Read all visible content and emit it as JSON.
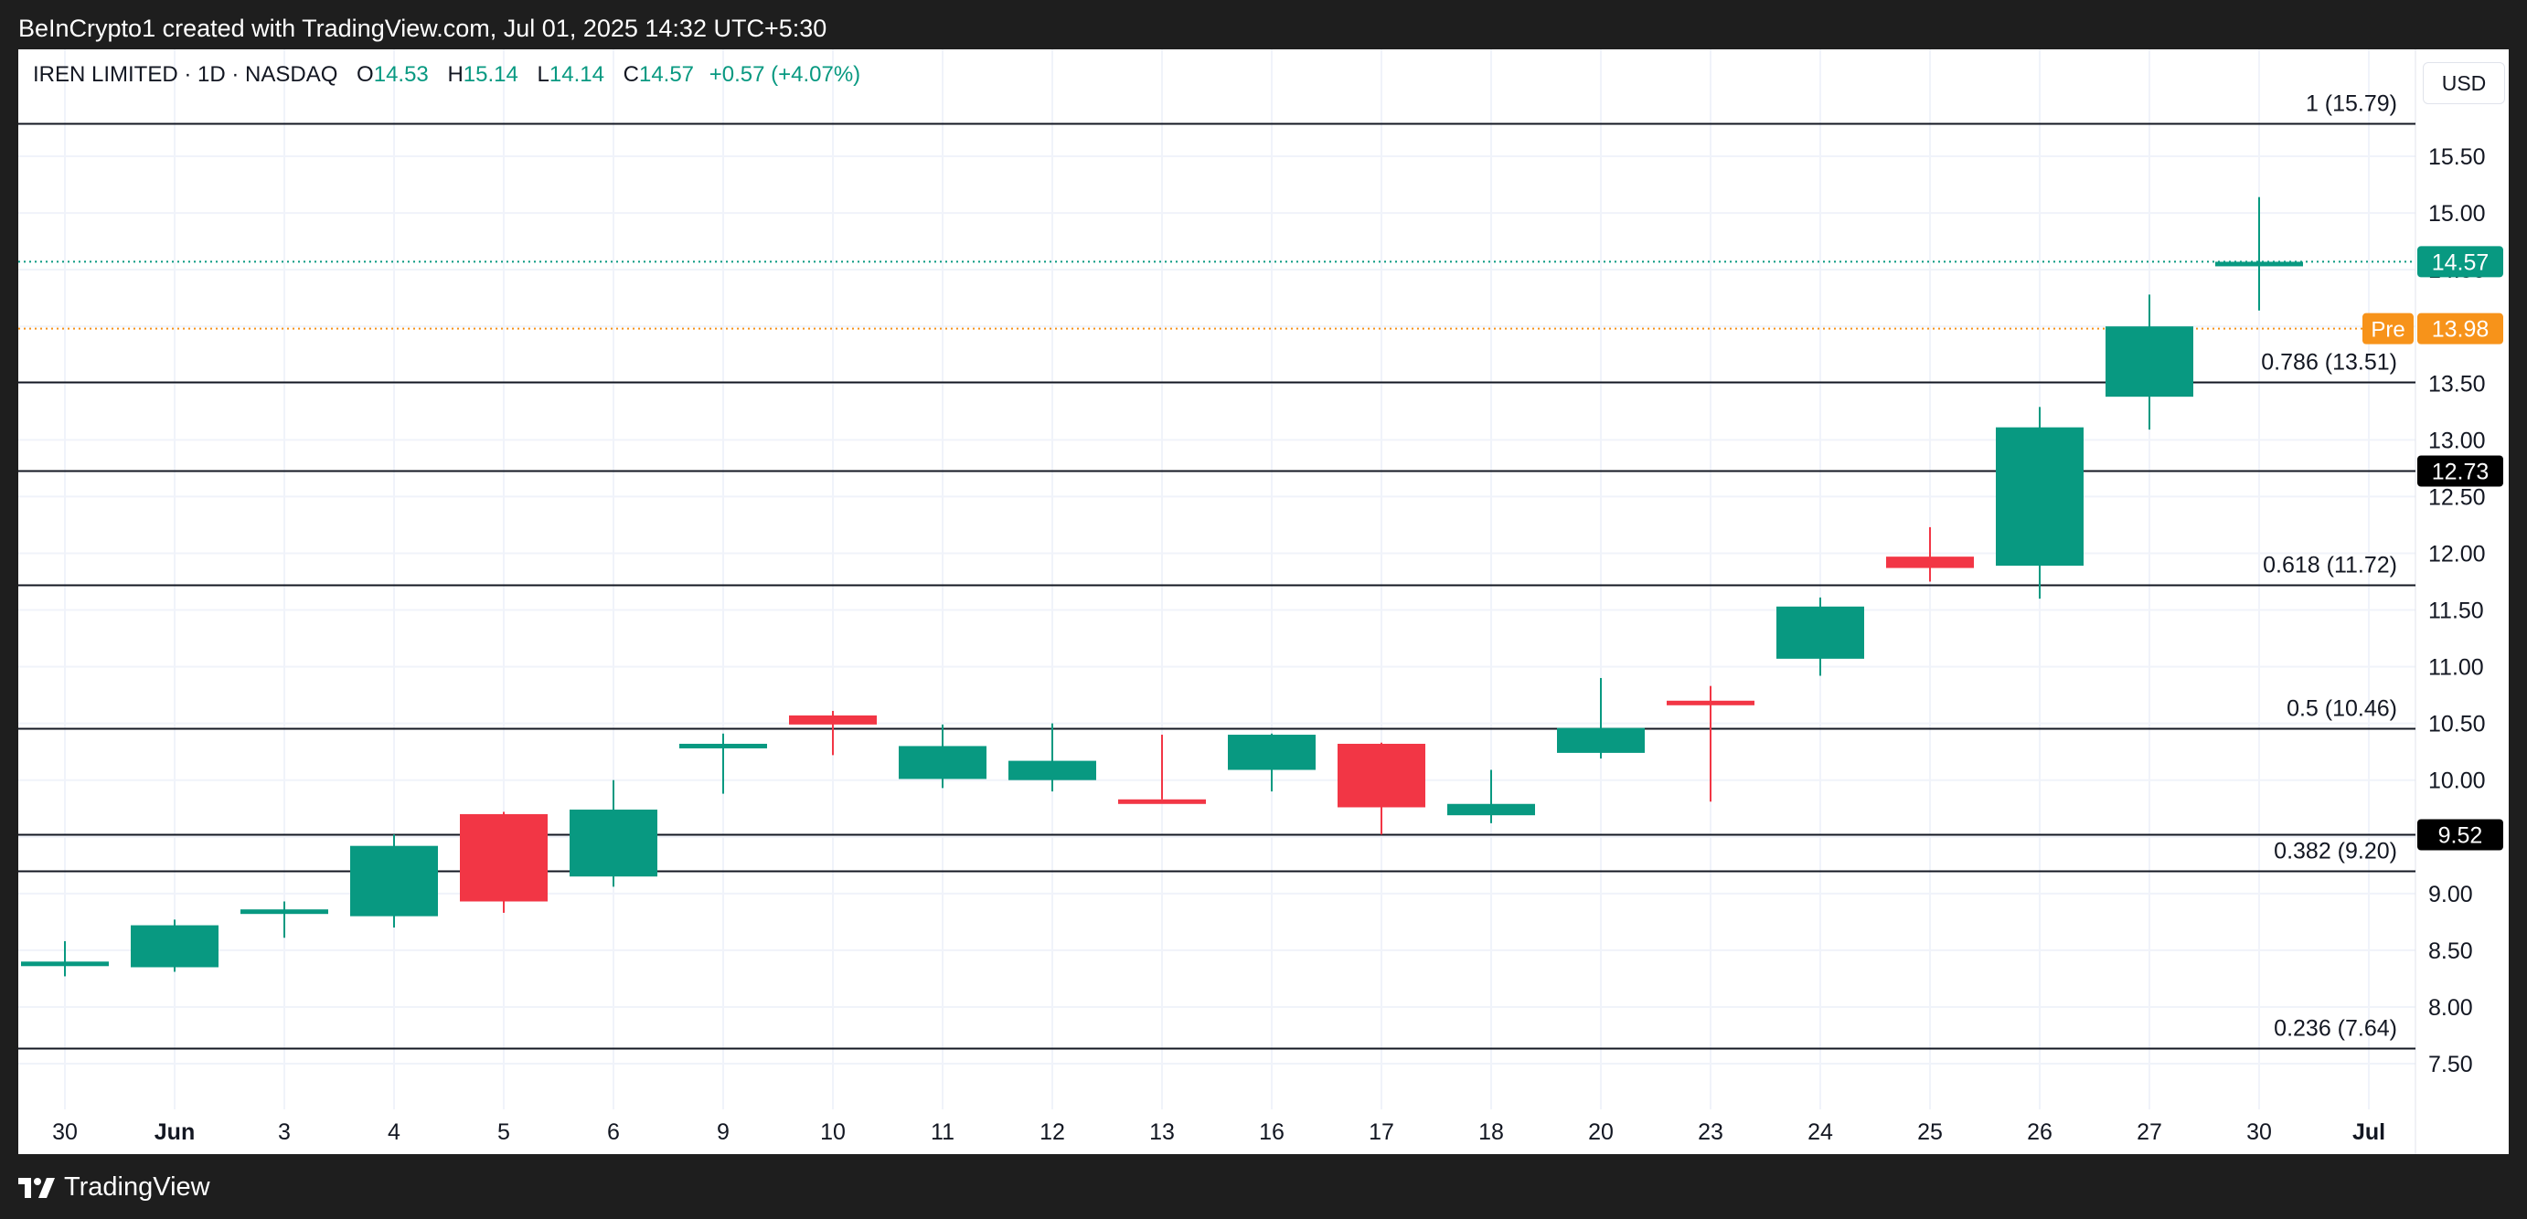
{
  "header": {
    "attribution": "BeInCrypto1 created with TradingView.com, Jul 01, 2025 14:32 UTC+5:30"
  },
  "legend": {
    "symbol": "IREN LIMITED · 1D · NASDAQ",
    "o_label": "O",
    "o_value": "14.53",
    "h_label": "H",
    "h_value": "15.14",
    "l_label": "L",
    "l_value": "14.14",
    "c_label": "C",
    "c_value": "14.57",
    "change": "+0.57 (+4.07%)"
  },
  "currency_button": "USD",
  "footer": {
    "brand": "TradingView"
  },
  "colors": {
    "up": "#089981",
    "down": "#f23645",
    "pre": "#f7931a",
    "line": "#131722",
    "grid": "#f0f3fa"
  },
  "chart_data": {
    "type": "candlestick",
    "price_range": [
      7.2,
      16.2
    ],
    "price_ticks": [
      "7.50",
      "8.00",
      "8.50",
      "9.00",
      "9.50",
      "10.00",
      "10.50",
      "11.00",
      "11.50",
      "12.00",
      "12.50",
      "13.00",
      "13.50",
      "14.00",
      "14.50",
      "15.00",
      "15.50"
    ],
    "grid": true,
    "x_labels": [
      "30",
      "Jun",
      "3",
      "4",
      "5",
      "6",
      "9",
      "10",
      "11",
      "12",
      "13",
      "16",
      "17",
      "18",
      "20",
      "23",
      "24",
      "25",
      "26",
      "27",
      "30",
      "Jul"
    ],
    "candles": [
      {
        "o": 8.38,
        "h": 8.58,
        "l": 8.27,
        "c": 8.4
      },
      {
        "o": 8.35,
        "h": 8.77,
        "l": 8.31,
        "c": 8.72
      },
      {
        "o": 8.83,
        "h": 8.93,
        "l": 8.61,
        "c": 8.86
      },
      {
        "o": 8.8,
        "h": 9.52,
        "l": 8.7,
        "c": 9.42
      },
      {
        "o": 9.7,
        "h": 9.72,
        "l": 8.83,
        "c": 8.93
      },
      {
        "o": 9.15,
        "h": 10.0,
        "l": 9.06,
        "c": 9.74
      },
      {
        "o": 10.28,
        "h": 10.41,
        "l": 9.88,
        "c": 10.32
      },
      {
        "o": 10.57,
        "h": 10.61,
        "l": 10.22,
        "c": 10.49
      },
      {
        "o": 10.01,
        "h": 10.49,
        "l": 9.93,
        "c": 10.3
      },
      {
        "o": 10.0,
        "h": 10.5,
        "l": 9.9,
        "c": 10.17
      },
      {
        "o": 9.83,
        "h": 10.4,
        "l": 9.83,
        "c": 9.82
      },
      {
        "o": 10.09,
        "h": 10.41,
        "l": 9.9,
        "c": 10.4
      },
      {
        "o": 10.32,
        "h": 10.33,
        "l": 9.52,
        "c": 9.76
      },
      {
        "o": 9.69,
        "h": 10.09,
        "l": 9.62,
        "c": 9.79
      },
      {
        "o": 10.24,
        "h": 10.9,
        "l": 10.19,
        "c": 10.46
      },
      {
        "o": 10.7,
        "h": 10.83,
        "l": 9.81,
        "c": 10.66
      },
      {
        "o": 11.07,
        "h": 11.61,
        "l": 10.92,
        "c": 11.53
      },
      {
        "o": 11.97,
        "h": 12.23,
        "l": 11.75,
        "c": 11.87
      },
      {
        "o": 11.89,
        "h": 13.29,
        "l": 11.6,
        "c": 13.11
      },
      {
        "o": 13.38,
        "h": 14.28,
        "l": 13.09,
        "c": 14.0
      },
      {
        "o": 14.53,
        "h": 15.14,
        "l": 14.14,
        "c": 14.57
      }
    ],
    "fib_levels": [
      {
        "label": "1 (15.79)",
        "value": 15.79
      },
      {
        "label": "0.786 (13.51)",
        "value": 13.51
      },
      {
        "label": "0.618 (11.72)",
        "value": 11.72
      },
      {
        "label": "0.5 (10.46)",
        "value": 10.46
      },
      {
        "label": "0.382 (9.20)",
        "value": 9.2
      },
      {
        "label": "0.236 (7.64)",
        "value": 7.64
      }
    ],
    "horizontal_lines": [
      {
        "label": "12.73",
        "value": 12.73
      },
      {
        "label": "9.52",
        "value": 9.52
      }
    ],
    "last_price": {
      "label": "14.57",
      "value": 14.57
    },
    "pre_market": {
      "tag": "Pre",
      "label": "13.98",
      "value": 13.98
    }
  }
}
